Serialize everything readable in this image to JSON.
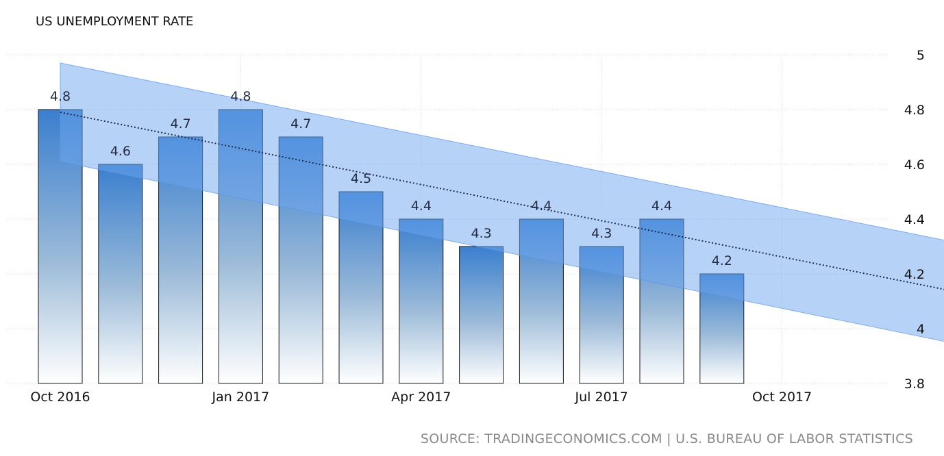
{
  "chart_data": {
    "type": "bar",
    "title": "US UNEMPLOYMENT RATE",
    "source": "SOURCE: TRADINGECONOMICS.COM | U.S. BUREAU OF LABOR STATISTICS",
    "x_ticks": [
      "Oct 2016",
      "Jan 2017",
      "Apr 2017",
      "Jul 2017",
      "Oct 2017"
    ],
    "categories": [
      "Oct 2016",
      "Nov 2016",
      "Dec 2016",
      "Jan 2017",
      "Feb 2017",
      "Mar 2017",
      "Apr 2017",
      "May 2017",
      "Jun 2017",
      "Jul 2017",
      "Aug 2017",
      "Sep 2017"
    ],
    "values": [
      4.8,
      4.6,
      4.7,
      4.8,
      4.7,
      4.5,
      4.4,
      4.3,
      4.4,
      4.3,
      4.4,
      4.2
    ],
    "value_labels": [
      "4.8",
      "4.6",
      "4.7",
      "4.8",
      "4.7",
      "4.5",
      "4.4",
      "4.3",
      "4.4",
      "4.3",
      "4.4",
      "4.2"
    ],
    "y_ticks": [
      "3.8",
      "4",
      "4.2",
      "4.4",
      "4.6",
      "4.8",
      "5"
    ],
    "ylim": [
      3.8,
      5.0
    ],
    "xlim": [
      "Oct 2016",
      "Jan 2018"
    ],
    "y_axis_position": "right",
    "grid": true,
    "forecast": {
      "trend_start": [
        "Oct 2016",
        4.79
      ],
      "trend_end": [
        "Jan 2018",
        4.13
      ],
      "band_upper_start": 4.97,
      "band_lower_start": 4.61,
      "band_upper_end": 4.31,
      "band_lower_end": 3.94
    },
    "colors": {
      "bar_top": "#3a7fcf",
      "bar_bottom": "#ffffff",
      "band": "#6ea5f0",
      "trend": "#1d2a4a",
      "grid": "#d9d9d9"
    }
  }
}
